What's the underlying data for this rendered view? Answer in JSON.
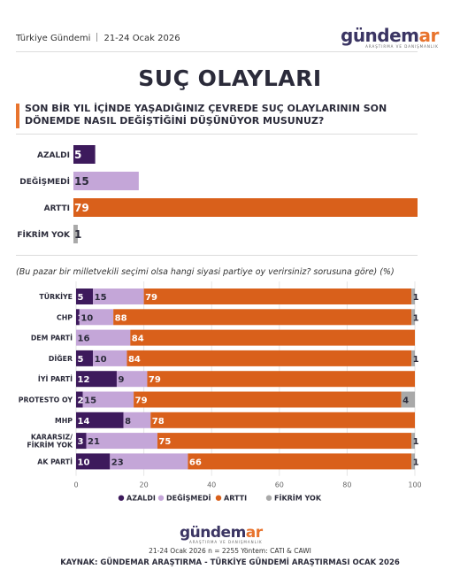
{
  "header": {
    "brand": "Türkiye Gündemi",
    "date": "21-24 Ocak 2026"
  },
  "logo": {
    "main": "gündem",
    "accent": "ar",
    "tagline": "ARAŞTIRMA VE DANIŞMANLIK"
  },
  "title": "SUÇ OLAYLARI",
  "question": "SON BİR YIL İÇİNDE YAŞADIĞINIZ ÇEVREDE SUÇ OLAYLARININ SON DÖNEMDE NASIL DEĞİŞTİĞİNİ DÜŞÜNÜYOR MUSUNUZ?",
  "colors": {
    "azaldi": "#3d1a5c",
    "degismedi": "#c4a6d8",
    "artti": "#d9601b",
    "fikrim_yok": "#a9a9a9"
  },
  "chart_data": [
    {
      "type": "bar",
      "orientation": "horizontal",
      "categories": [
        "AZALDI",
        "DEĞİŞMEDİ",
        "ARTTI",
        "FİKRİM YOK"
      ],
      "values": [
        5,
        15,
        79,
        1
      ],
      "xlim": [
        0,
        79
      ]
    },
    {
      "type": "bar",
      "stacked": true,
      "orientation": "horizontal",
      "subtitle": "(Bu pazar bir milletvekili seçimi olsa hangi siyasi partiye oy verirsiniz? sorusuna göre) (%)",
      "categories": [
        "TÜRKİYE",
        "CHP",
        "DEM PARTİ",
        "DİĞER",
        "İYİ PARTİ",
        "PROTESTO OY",
        "MHP",
        "KARARSIZ/ FİKRİM YOK",
        "AK PARTİ"
      ],
      "series": [
        {
          "name": "AZALDI",
          "values": [
            5,
            1,
            0,
            5,
            12,
            2,
            14,
            3,
            10
          ]
        },
        {
          "name": "DEĞİŞMEDİ",
          "values": [
            15,
            10,
            16,
            10,
            9,
            15,
            8,
            21,
            23
          ]
        },
        {
          "name": "ARTTI",
          "values": [
            79,
            88,
            84,
            84,
            79,
            79,
            78,
            75,
            66
          ]
        },
        {
          "name": "FİKRİM YOK",
          "values": [
            1,
            1,
            0,
            1,
            0,
            4,
            0,
            1,
            1
          ]
        }
      ],
      "xlim": [
        0,
        100
      ],
      "xticks": [
        0,
        20,
        40,
        60,
        80,
        100
      ],
      "legend": "bottom"
    }
  ],
  "footer": {
    "meta": "21-24 Ocak 2026 n = 2255 Yöntem: CATI & CAWI",
    "source": "KAYNAK: GÜNDEMAR ARAŞTIRMA - TÜRKİYE GÜNDEMİ ARAŞTIRMASI OCAK 2026"
  }
}
